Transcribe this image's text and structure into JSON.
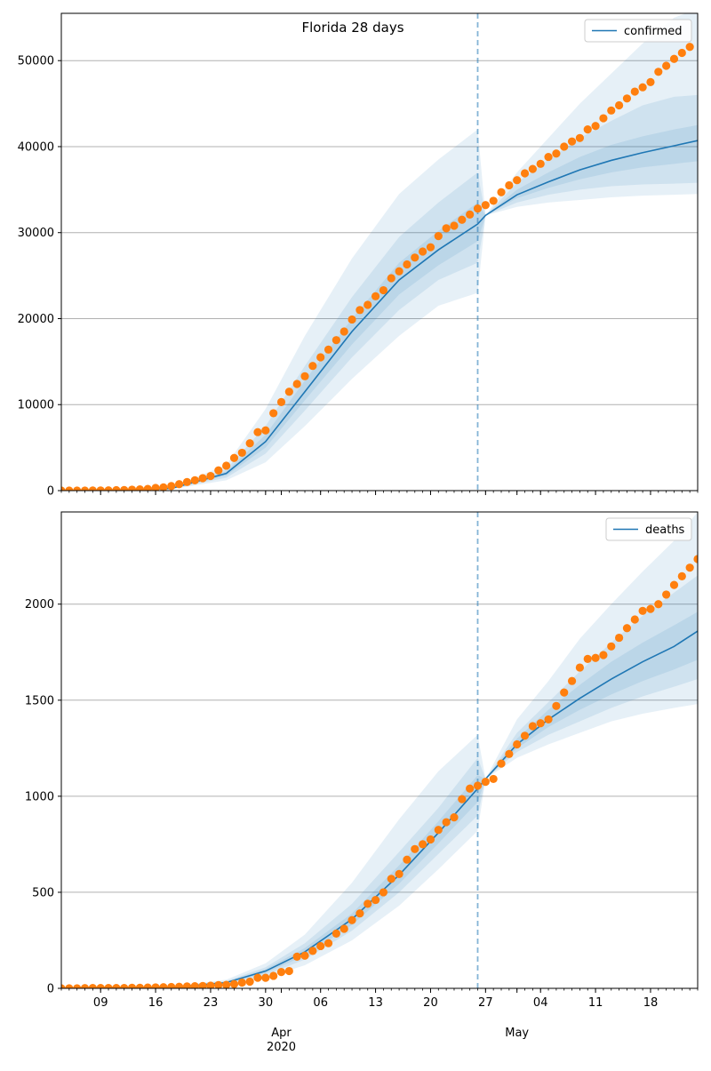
{
  "colors": {
    "line": "#1f77b4",
    "band": "#1f77b4",
    "actual": "#ff7f0e",
    "grid": "#b0b0b0",
    "axis": "#000000"
  },
  "chart_data": [
    {
      "type": "line",
      "title": "Florida 28 days",
      "x_axis": {
        "type": "date",
        "range": [
          "2020-03-04",
          "2020-05-24"
        ],
        "major_tick_labels": [
          {
            "date": "2020-03-09",
            "label": "09"
          },
          {
            "date": "2020-03-16",
            "label": "16"
          },
          {
            "date": "2020-03-23",
            "label": "23"
          },
          {
            "date": "2020-03-30",
            "label": "30"
          },
          {
            "date": "2020-04-06",
            "label": "06"
          },
          {
            "date": "2020-04-13",
            "label": "13"
          },
          {
            "date": "2020-04-20",
            "label": "20"
          },
          {
            "date": "2020-04-27",
            "label": "27"
          },
          {
            "date": "2020-05-04",
            "label": "04"
          },
          {
            "date": "2020-05-11",
            "label": "11"
          },
          {
            "date": "2020-05-18",
            "label": "18"
          }
        ],
        "month_labels": [],
        "tick_labels_visible": false
      },
      "y_axis": {
        "range": [
          0,
          55500
        ],
        "ticks": [
          0,
          10000,
          20000,
          30000,
          40000,
          50000
        ]
      },
      "grid": "horizontal",
      "legend": {
        "placement": "top-right",
        "entries": [
          "confirmed"
        ]
      },
      "forecast_start": "2020-04-26",
      "series": [
        {
          "name": "confirmed",
          "style": "line",
          "x": [
            "2020-03-04",
            "2020-03-11",
            "2020-03-18",
            "2020-03-25",
            "2020-03-30",
            "2020-04-04",
            "2020-04-10",
            "2020-04-16",
            "2020-04-21",
            "2020-04-26",
            "2020-04-27",
            "2020-05-01",
            "2020-05-05",
            "2020-05-09",
            "2020-05-13",
            "2020-05-17",
            "2020-05-21",
            "2020-05-24"
          ],
          "y": [
            0,
            40,
            250,
            2000,
            5700,
            11500,
            18500,
            24500,
            28000,
            31000,
            32000,
            34400,
            35900,
            37300,
            38400,
            39300,
            40100,
            40700
          ]
        },
        {
          "name": "band_outer",
          "style": "band",
          "x": [
            "2020-03-04",
            "2020-03-11",
            "2020-03-18",
            "2020-03-25",
            "2020-03-30",
            "2020-04-04",
            "2020-04-10",
            "2020-04-16",
            "2020-04-21",
            "2020-04-26",
            "2020-04-27",
            "2020-05-01",
            "2020-05-05",
            "2020-05-09",
            "2020-05-13",
            "2020-05-17",
            "2020-05-21",
            "2020-05-24"
          ],
          "low": [
            0,
            20,
            150,
            1200,
            3300,
            7500,
            13000,
            18000,
            21500,
            23000,
            32000,
            33000,
            33500,
            33800,
            34100,
            34300,
            34400,
            34500
          ],
          "high": [
            0,
            60,
            400,
            3000,
            9500,
            18000,
            27000,
            34500,
            38500,
            42000,
            32000,
            37000,
            41000,
            45000,
            48500,
            52000,
            55000,
            56000
          ]
        },
        {
          "name": "band_mid",
          "style": "band",
          "x": [
            "2020-03-04",
            "2020-03-11",
            "2020-03-18",
            "2020-03-25",
            "2020-03-30",
            "2020-04-04",
            "2020-04-10",
            "2020-04-16",
            "2020-04-21",
            "2020-04-26",
            "2020-04-27",
            "2020-05-01",
            "2020-05-05",
            "2020-05-09",
            "2020-05-13",
            "2020-05-17",
            "2020-05-21",
            "2020-05-24"
          ],
          "low": [
            0,
            30,
            200,
            1500,
            4300,
            9300,
            15500,
            21000,
            24500,
            26500,
            32000,
            33500,
            34400,
            35000,
            35400,
            35600,
            35700,
            35800
          ],
          "high": [
            0,
            50,
            320,
            2500,
            7500,
            14500,
            22500,
            29500,
            33500,
            37000,
            32000,
            35800,
            38500,
            41000,
            43000,
            44800,
            45800,
            46000
          ]
        },
        {
          "name": "band_inner",
          "style": "band",
          "x": [
            "2020-03-04",
            "2020-03-11",
            "2020-03-18",
            "2020-03-25",
            "2020-03-30",
            "2020-04-04",
            "2020-04-10",
            "2020-04-16",
            "2020-04-21",
            "2020-04-26",
            "2020-04-27",
            "2020-05-01",
            "2020-05-05",
            "2020-05-09",
            "2020-05-13",
            "2020-05-17",
            "2020-05-21",
            "2020-05-24"
          ],
          "low": [
            0,
            35,
            220,
            1750,
            5000,
            10500,
            17000,
            22800,
            26200,
            29000,
            32000,
            34000,
            35200,
            36200,
            37000,
            37600,
            38000,
            38300
          ],
          "high": [
            0,
            45,
            280,
            2250,
            6500,
            12800,
            20000,
            26500,
            30200,
            33500,
            32000,
            35000,
            37000,
            38800,
            40200,
            41200,
            42000,
            42500
          ]
        },
        {
          "name": "actual",
          "style": "scatter",
          "start": "2020-03-04",
          "step_days": 1,
          "y": [
            2,
            2,
            3,
            5,
            10,
            20,
            30,
            50,
            70,
            110,
            140,
            190,
            310,
            380,
            530,
            750,
            1000,
            1200,
            1450,
            1700,
            2350,
            2900,
            3800,
            4400,
            5500,
            6800,
            7000,
            9000,
            10300,
            11500,
            12400,
            13300,
            14500,
            15500,
            16400,
            17500,
            18500,
            19900,
            21000,
            21600,
            22600,
            23300,
            24700,
            25500,
            26300,
            27100,
            27800,
            28300,
            29600,
            30500,
            30800,
            31500,
            32100,
            32800,
            33200,
            33700,
            34700,
            35500,
            36100,
            36900,
            37400,
            38000,
            38800,
            39200,
            40000,
            40600,
            41000,
            42000,
            42400,
            43300,
            44200,
            44800,
            45600,
            46400,
            46900,
            47500,
            48700,
            49400,
            50200,
            50900,
            51600
          ]
        }
      ]
    },
    {
      "type": "line",
      "title": "",
      "x_axis": {
        "type": "date",
        "range": [
          "2020-03-04",
          "2020-05-24"
        ],
        "major_tick_labels": [
          {
            "date": "2020-03-09",
            "label": "09"
          },
          {
            "date": "2020-03-16",
            "label": "16"
          },
          {
            "date": "2020-03-23",
            "label": "23"
          },
          {
            "date": "2020-03-30",
            "label": "30"
          },
          {
            "date": "2020-04-06",
            "label": "06"
          },
          {
            "date": "2020-04-13",
            "label": "13"
          },
          {
            "date": "2020-04-20",
            "label": "20"
          },
          {
            "date": "2020-04-27",
            "label": "27"
          },
          {
            "date": "2020-05-04",
            "label": "04"
          },
          {
            "date": "2020-05-11",
            "label": "11"
          },
          {
            "date": "2020-05-18",
            "label": "18"
          }
        ],
        "month_labels": [
          {
            "date": "2020-04-01",
            "label": "Apr",
            "sub": "2020"
          },
          {
            "date": "2020-05-01",
            "label": "May",
            "sub": ""
          }
        ],
        "tick_labels_visible": true
      },
      "y_axis": {
        "range": [
          0,
          2480
        ],
        "ticks": [
          0,
          500,
          1000,
          1500,
          2000
        ]
      },
      "grid": "horizontal",
      "legend": {
        "placement": "top-right",
        "entries": [
          "deaths"
        ]
      },
      "forecast_start": "2020-04-26",
      "series": [
        {
          "name": "deaths",
          "style": "line",
          "x": [
            "2020-03-04",
            "2020-03-11",
            "2020-03-18",
            "2020-03-25",
            "2020-03-30",
            "2020-04-04",
            "2020-04-10",
            "2020-04-16",
            "2020-04-21",
            "2020-04-26",
            "2020-04-27",
            "2020-05-01",
            "2020-05-05",
            "2020-05-09",
            "2020-05-13",
            "2020-05-17",
            "2020-05-21",
            "2020-05-24"
          ],
          "y": [
            0,
            1,
            5,
            30,
            90,
            190,
            360,
            590,
            810,
            1040,
            1090,
            1270,
            1400,
            1510,
            1610,
            1700,
            1780,
            1860
          ]
        },
        {
          "name": "band_outer",
          "style": "band",
          "x": [
            "2020-03-04",
            "2020-03-11",
            "2020-03-18",
            "2020-03-25",
            "2020-03-30",
            "2020-04-04",
            "2020-04-10",
            "2020-04-16",
            "2020-04-21",
            "2020-04-26",
            "2020-04-27",
            "2020-05-01",
            "2020-05-05",
            "2020-05-09",
            "2020-05-13",
            "2020-05-17",
            "2020-05-21",
            "2020-05-24"
          ],
          "low": [
            0,
            0,
            2,
            18,
            55,
            120,
            250,
            430,
            620,
            820,
            1090,
            1200,
            1270,
            1330,
            1390,
            1430,
            1460,
            1480
          ],
          "high": [
            0,
            2,
            8,
            45,
            130,
            280,
            550,
            880,
            1130,
            1320,
            1090,
            1400,
            1600,
            1820,
            2000,
            2170,
            2330,
            2480
          ]
        },
        {
          "name": "band_mid",
          "style": "band",
          "x": [
            "2020-03-04",
            "2020-03-11",
            "2020-03-18",
            "2020-03-25",
            "2020-03-30",
            "2020-04-04",
            "2020-04-10",
            "2020-04-16",
            "2020-04-21",
            "2020-04-26",
            "2020-04-27",
            "2020-05-01",
            "2020-05-05",
            "2020-05-09",
            "2020-05-13",
            "2020-05-17",
            "2020-05-21",
            "2020-05-24"
          ],
          "low": [
            0,
            0,
            3,
            22,
            70,
            150,
            300,
            500,
            700,
            900,
            1090,
            1230,
            1320,
            1390,
            1460,
            1520,
            1570,
            1610
          ],
          "high": [
            0,
            1.5,
            7,
            38,
            110,
            235,
            440,
            710,
            940,
            1200,
            1090,
            1330,
            1490,
            1650,
            1800,
            1940,
            2060,
            2150
          ]
        },
        {
          "name": "band_inner",
          "style": "band",
          "x": [
            "2020-03-04",
            "2020-03-11",
            "2020-03-18",
            "2020-03-25",
            "2020-03-30",
            "2020-04-04",
            "2020-04-10",
            "2020-04-16",
            "2020-04-21",
            "2020-04-26",
            "2020-04-27",
            "2020-05-01",
            "2020-05-05",
            "2020-05-09",
            "2020-05-13",
            "2020-05-17",
            "2020-05-21",
            "2020-05-24"
          ],
          "low": [
            0,
            0.5,
            4,
            26,
            80,
            170,
            330,
            545,
            755,
            970,
            1090,
            1250,
            1360,
            1450,
            1530,
            1600,
            1660,
            1710
          ],
          "high": [
            0,
            1.2,
            6,
            34,
            100,
            210,
            390,
            640,
            870,
            1110,
            1090,
            1300,
            1450,
            1580,
            1700,
            1800,
            1890,
            1960
          ]
        },
        {
          "name": "actual",
          "style": "scatter",
          "start": "2020-03-04",
          "step_days": 1,
          "y": [
            0,
            0,
            0,
            1,
            2,
            2,
            2,
            2,
            2,
            3,
            3,
            4,
            5,
            6,
            7,
            8,
            10,
            11,
            12,
            14,
            17,
            18,
            22,
            30,
            35,
            55,
            55,
            65,
            85,
            90,
            165,
            170,
            195,
            220,
            235,
            285,
            310,
            355,
            390,
            440,
            460,
            500,
            570,
            595,
            670,
            725,
            750,
            775,
            825,
            865,
            890,
            985,
            1040,
            1055,
            1075,
            1090,
            1170,
            1220,
            1270,
            1315,
            1365,
            1380,
            1400,
            1470,
            1540,
            1600,
            1670,
            1715,
            1720,
            1735,
            1780,
            1825,
            1875,
            1920,
            1965,
            1975,
            2000,
            2050,
            2100,
            2145,
            2190,
            2235
          ]
        }
      ]
    }
  ]
}
